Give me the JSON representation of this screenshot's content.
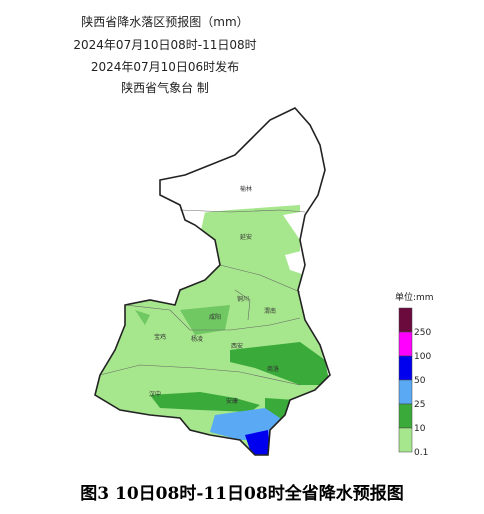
{
  "header": {
    "title": "陕西省降水落区预报图（mm）",
    "period": "2024年07月10日08时-11日08时",
    "issued": "2024年07月10日06时发布",
    "publisher": "陕西省气象台 制"
  },
  "cities": [
    {
      "label": "榆林"
    },
    {
      "label": "延安"
    },
    {
      "label": "铜川"
    },
    {
      "label": "咸阳"
    },
    {
      "label": "渭南"
    },
    {
      "label": "宝鸡"
    },
    {
      "label": "杨凌"
    },
    {
      "label": "西安"
    },
    {
      "label": "商洛"
    },
    {
      "label": "汉中"
    },
    {
      "label": "安康"
    }
  ],
  "legend": {
    "unit": "单位:mm",
    "top_color": "#6b0a3c",
    "levels": [
      {
        "label": 250,
        "color": "#ff00ff"
      },
      {
        "label": 100,
        "color": "#0000ee"
      },
      {
        "label": 50,
        "color": "#5aa9f5"
      },
      {
        "label": 25,
        "color": "#3aaa3a"
      },
      {
        "label": 10,
        "color": "#a6e68c"
      },
      {
        "label": 0.1,
        "color": "#ffffff"
      }
    ]
  },
  "caption": "图3  10日08时-11日08时全省降水预报图"
}
